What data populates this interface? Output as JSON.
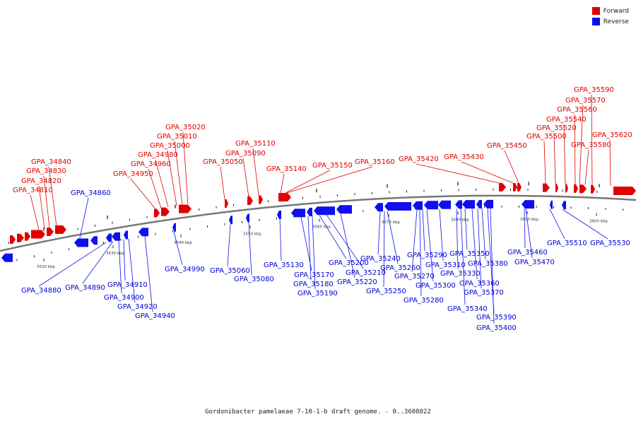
{
  "legend": {
    "forward": {
      "label": "Forward",
      "color": "#e00000"
    },
    "reverse": {
      "label": "Reverse",
      "color": "#1010ee"
    }
  },
  "caption": "Gordonibacter pamelaeae 7-10-1-b draft genome. - 0..3608022",
  "scale_labels": [
    "3520 kbp",
    "3530 kbp",
    "3540 kbp",
    "3550 kbp",
    "3560 kbp",
    "3570 kbp",
    "3580 kbp",
    "3590 kbp",
    "3600 kbp"
  ],
  "forward_genes": [
    "GPA_34810",
    "GPA_34820",
    "GPA_34830",
    "GPA_34840",
    "GPA_34950",
    "GPA_34960",
    "GPA_34980",
    "GPA_35000",
    "GPA_35010",
    "GPA_35020",
    "GPA_35050",
    "GPA_35090",
    "GPA_35110",
    "GPA_35140",
    "GPA_35150",
    "GPA_35160",
    "GPA_35420",
    "GPA_35430",
    "GPA_35450",
    "GPA_35500",
    "GPA_35520",
    "GPA_35540",
    "GPA_35560",
    "GPA_35570",
    "GPA_35590",
    "GPA_35580",
    "GPA_35620"
  ],
  "reverse_genes": [
    "GPA_34860",
    "GPA_34880",
    "GPA_34890",
    "GPA_34900",
    "GPA_34910",
    "GPA_34920",
    "GPA_34940",
    "GPA_34990",
    "GPA_35060",
    "GPA_35080",
    "GPA_35130",
    "GPA_35170",
    "GPA_35180",
    "GPA_35190",
    "GPA_35200",
    "GPA_35210",
    "GPA_35220",
    "GPA_35240",
    "GPA_35250",
    "GPA_35260",
    "GPA_35270",
    "GPA_35280",
    "GPA_35290",
    "GPA_35300",
    "GPA_35310",
    "GPA_35330",
    "GPA_35340",
    "GPA_35350",
    "GPA_35360",
    "GPA_35370",
    "GPA_35380",
    "GPA_35390",
    "GPA_35400",
    "GPA_35460",
    "GPA_35470",
    "GPA_35510",
    "GPA_35530"
  ]
}
